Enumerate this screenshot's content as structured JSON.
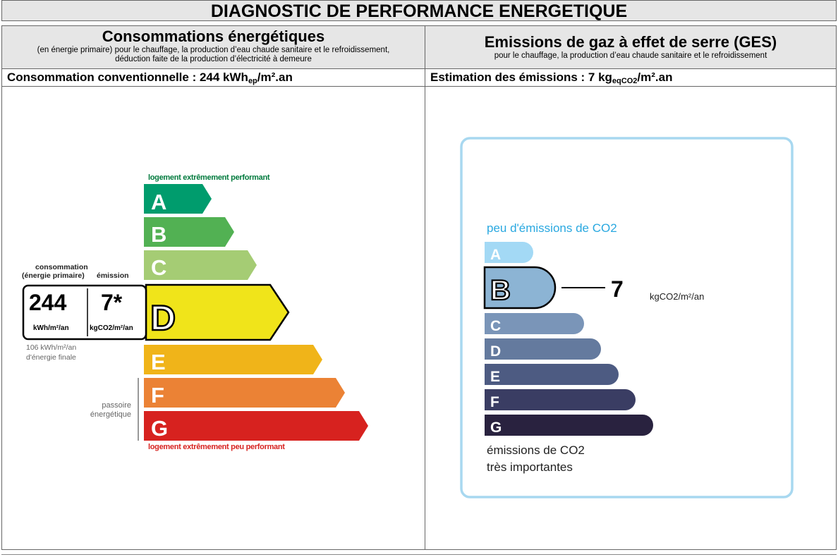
{
  "title": "DIAGNOSTIC DE PERFORMANCE ENERGETIQUE",
  "left": {
    "heading": "Consommations énergétiques",
    "subheading": "(en énergie primaire) pour le chauffage, la production d’eau chaude sanitaire et le refroidissement, déduction faite de la production d’électricité à demeure",
    "conv_label": "Consommation conventionnelle : 244 kWh",
    "conv_sub": "ep",
    "conv_unit": "/m².an",
    "top_label": "logement extrêmement performant",
    "bottom_label": "logement extrêmement peu performant",
    "side_consumption_label_1": "consommation",
    "side_consumption_label_2": "(énergie primaire)",
    "side_emission_label": "émission",
    "consumption_value": "244",
    "consumption_unit": "kWh/m²/an",
    "emission_value": "7*",
    "emission_unit": "kgCO2/m²/an",
    "final_energy_1": "106 kWh/m²/an",
    "final_energy_2": "d'énergie finale",
    "passoire_1": "passoire",
    "passoire_2": "énergétique",
    "current_class": "D",
    "classes": [
      {
        "letter": "A",
        "color": "#009c6d"
      },
      {
        "letter": "B",
        "color": "#52b153"
      },
      {
        "letter": "C",
        "color": "#a5cc74"
      },
      {
        "letter": "D",
        "color": "#f0e41a"
      },
      {
        "letter": "E",
        "color": "#f0b419"
      },
      {
        "letter": "F",
        "color": "#eb8235"
      },
      {
        "letter": "G",
        "color": "#d7221f"
      }
    ],
    "top_label_color": "#007a3d",
    "bottom_label_color": "#d7221f"
  },
  "right": {
    "heading": "Emissions de gaz à effet de serre (GES)",
    "subheading": "pour le chauffage, la production d’eau chaude sanitaire et le refroidissement",
    "est_label": "Estimation des émissions : 7 kg",
    "est_sub": "eqCO2",
    "est_unit": "/m².an",
    "top_label": "peu d'émissions de CO2",
    "bottom_label_1": "émissions de CO2",
    "bottom_label_2": "très importantes",
    "value": "7",
    "value_unit": "kgCO2/m²/an",
    "current_class": "B",
    "frame_color": "#a8d8f0",
    "top_label_color": "#29a8e0",
    "classes": [
      {
        "letter": "A",
        "color": "#a3d9f5"
      },
      {
        "letter": "B",
        "color": "#8cb4d4"
      },
      {
        "letter": "C",
        "color": "#7a95b8"
      },
      {
        "letter": "D",
        "color": "#647a9e"
      },
      {
        "letter": "E",
        "color": "#4d5b82"
      },
      {
        "letter": "F",
        "color": "#3a3d63"
      },
      {
        "letter": "G",
        "color": "#29223f"
      }
    ]
  }
}
